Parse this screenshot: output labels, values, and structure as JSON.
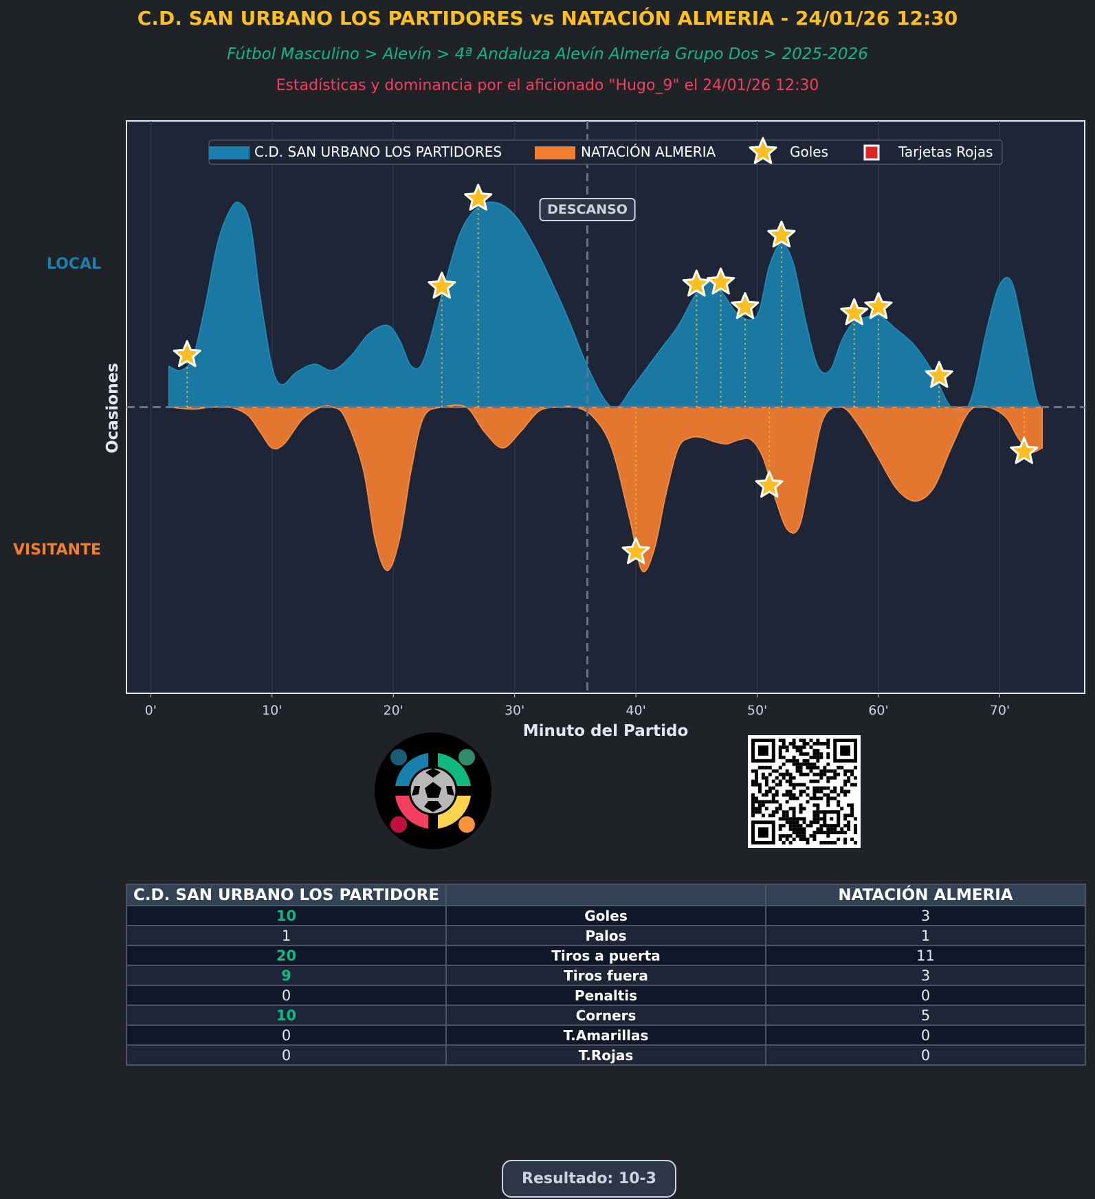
{
  "header": {
    "title": "C.D. SAN URBANO LOS PARTIDORES vs NATACIÓN ALMERIA - 24/01/26 12:30",
    "subtitle": "Fútbol Masculino > Alevín > 4ª Andaluza Alevín Almería Grupo Dos > 2025-2026",
    "credit": "Estadísticas y dominancia por el aficionado \"Hugo_9\" el 24/01/26 12:30"
  },
  "chart_data": {
    "type": "area",
    "title": "",
    "xlabel": "Minuto del Partido",
    "ylabel": "Ocasiones",
    "xlim": [
      -2,
      77
    ],
    "ylim": [
      -1.4,
      1.4
    ],
    "x_ticks": [
      0,
      10,
      20,
      30,
      40,
      50,
      60,
      70
    ],
    "x_tick_labels": [
      "0'",
      "10'",
      "20'",
      "30'",
      "40'",
      "50'",
      "60'",
      "70'"
    ],
    "side_labels": {
      "top": "LOCAL",
      "bottom": "VISITANTE"
    },
    "halftime_label": "DESCANSO",
    "halftime_minute": 36,
    "grid": true,
    "legend": {
      "position": "top-center",
      "entries": [
        "C.D. SAN URBANO LOS PARTIDORES",
        "NATACIÓN ALMERIA",
        "Goles",
        "Tarjetas Rojas"
      ]
    },
    "series": [
      {
        "name": "C.D. SAN URBANO LOS PARTIDORES",
        "color": "#1a80ad",
        "x": [
          1.5,
          2.5,
          3.5,
          4.5,
          5.5,
          6.5,
          7.3,
          8.2,
          9,
          10,
          10.8,
          12,
          13.5,
          15,
          16.5,
          18,
          19.5,
          20.5,
          21.5,
          22.5,
          24,
          25.5,
          27,
          28.5,
          30,
          31.5,
          33,
          34.5,
          36,
          37.5,
          38.5,
          39.5,
          40.5,
          42,
          43.5,
          45,
          46,
          47,
          48.5,
          50,
          51,
          52,
          53,
          54,
          55,
          56,
          57,
          58,
          59,
          60,
          61.5,
          63,
          64.5,
          66,
          67.5,
          69,
          70,
          71,
          72,
          73,
          73.5
        ],
        "values": [
          0.2,
          0.18,
          0.25,
          0.5,
          0.8,
          0.96,
          1.0,
          0.9,
          0.55,
          0.2,
          0.11,
          0.17,
          0.21,
          0.18,
          0.25,
          0.36,
          0.4,
          0.33,
          0.2,
          0.23,
          0.55,
          0.85,
          0.98,
          1.0,
          0.94,
          0.8,
          0.62,
          0.42,
          0.2,
          0.03,
          0.0,
          0.08,
          0.16,
          0.28,
          0.4,
          0.56,
          0.61,
          0.57,
          0.45,
          0.45,
          0.69,
          0.8,
          0.7,
          0.42,
          0.2,
          0.18,
          0.33,
          0.42,
          0.44,
          0.45,
          0.38,
          0.3,
          0.17,
          0.0,
          0.02,
          0.4,
          0.6,
          0.61,
          0.35,
          0.05,
          0.0
        ]
      },
      {
        "name": "NATACIÓN ALMERIA",
        "color": "#f47e30",
        "x": [
          1.5,
          3.5,
          5,
          6.5,
          8,
          9,
          10,
          11,
          12.5,
          14,
          15,
          16,
          17.5,
          18.5,
          19.5,
          20.5,
          21.5,
          22.5,
          24,
          26,
          27.5,
          29,
          30.5,
          32,
          33.5,
          35,
          36.5,
          38,
          39.5,
          40.5,
          41.5,
          42.5,
          43.5,
          44.5,
          45.5,
          46.5,
          47.5,
          48.5,
          49.5,
          50.5,
          51.5,
          52.5,
          53.5,
          54.5,
          55.5,
          57,
          58.5,
          60,
          61.5,
          63,
          64.5,
          66,
          67.5,
          69,
          70.5,
          71.5,
          72.5,
          73.5
        ],
        "values": [
          0.0,
          0.01,
          0.0,
          0.0,
          0.04,
          0.12,
          0.2,
          0.18,
          0.06,
          0.0,
          0.0,
          0.05,
          0.3,
          0.65,
          0.8,
          0.65,
          0.3,
          0.05,
          0.0,
          0.0,
          0.12,
          0.2,
          0.12,
          0.02,
          0.0,
          0.0,
          0.05,
          0.2,
          0.55,
          0.8,
          0.7,
          0.42,
          0.2,
          0.15,
          0.15,
          0.17,
          0.18,
          0.16,
          0.16,
          0.25,
          0.45,
          0.6,
          0.58,
          0.3,
          0.05,
          0.0,
          0.1,
          0.25,
          0.4,
          0.46,
          0.4,
          0.2,
          0.02,
          0.0,
          0.05,
          0.15,
          0.22,
          0.2
        ]
      }
    ],
    "goals_local": [
      3,
      24,
      27,
      45,
      47,
      49,
      52,
      58,
      60,
      65
    ],
    "goals_visitor": [
      40,
      51,
      72
    ],
    "red_cards": []
  },
  "stats_table": {
    "home_header": "C.D. SAN URBANO LOS PARTIDORE",
    "middle_header": "",
    "away_header": "NATACIÓN ALMERIA",
    "rows": [
      {
        "home": "10",
        "label": "Goles",
        "away": "3",
        "home_lead": true
      },
      {
        "home": "1",
        "label": "Palos",
        "away": "1",
        "home_lead": false
      },
      {
        "home": "20",
        "label": "Tiros a puerta",
        "away": "11",
        "home_lead": true
      },
      {
        "home": "9",
        "label": "Tiros fuera",
        "away": "3",
        "home_lead": true
      },
      {
        "home": "0",
        "label": "Penaltis",
        "away": "0",
        "home_lead": false
      },
      {
        "home": "10",
        "label": "Corners",
        "away": "5",
        "home_lead": true
      },
      {
        "home": "0",
        "label": "T.Amarillas",
        "away": "0",
        "home_lead": false
      },
      {
        "home": "0",
        "label": "T.Rojas",
        "away": "0",
        "home_lead": false
      }
    ]
  },
  "result": {
    "label": "Resultado: 10-3"
  },
  "colors": {
    "local": "#1a80ad",
    "visitor": "#f47e30",
    "goal": "#fbbf24",
    "background": "#1f2226",
    "plot_bg": "#1e2536"
  }
}
